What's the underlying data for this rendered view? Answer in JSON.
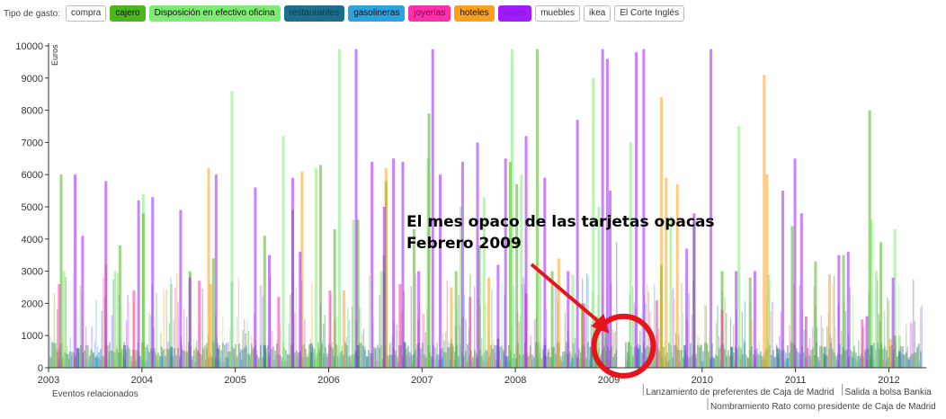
{
  "filter": {
    "label": "Tipo de gasto:",
    "buttons": [
      {
        "label": "compra",
        "color": "#ffffff",
        "text_color": "#333333"
      },
      {
        "label": "cajero",
        "color": "#4cb71b",
        "text_color": "#111111"
      },
      {
        "label": "Disposición en efectivo oficina",
        "color": "#7dec72",
        "text_color": "#111111"
      },
      {
        "label": "restaurantes",
        "color": "#1a6f8c",
        "text_color": "#0d3a4a"
      },
      {
        "label": "gasolineras",
        "color": "#2aa3e0",
        "text_color": "#111111"
      },
      {
        "label": "joyerías",
        "color": "#ff2fa8",
        "text_color": "#7a0050"
      },
      {
        "label": "hoteles",
        "color": "#ff9f1c",
        "text_color": "#111111"
      },
      {
        "label": "viajes",
        "color": "#a31cff",
        "text_color": "#7a20c0"
      },
      {
        "label": "muebles",
        "color": "#ffffff",
        "text_color": "#333333"
      },
      {
        "label": "ikea",
        "color": "#ffffff",
        "text_color": "#333333"
      },
      {
        "label": "El Corte Inglés",
        "color": "#ffffff",
        "text_color": "#333333"
      }
    ]
  },
  "chart_data": {
    "type": "bar",
    "ylabel": "Euros",
    "xlabel": "",
    "ylim": [
      0,
      10000
    ],
    "yticks": [
      0,
      1000,
      2000,
      3000,
      4000,
      5000,
      6000,
      7000,
      8000,
      9000,
      10000
    ],
    "xlim": [
      2003.0,
      2012.4
    ],
    "xticks": [
      "2003",
      "2004",
      "2005",
      "2006",
      "2007",
      "2008",
      "2009",
      "2010",
      "2011",
      "2012"
    ],
    "grid": false,
    "gap_month": "2009-02",
    "series": [
      {
        "name": "Disposición en efectivo oficina",
        "color": "#7dec72",
        "points": [
          [
            2003.15,
            3000
          ],
          [
            2003.7,
            3000
          ],
          [
            2004.0,
            5400
          ],
          [
            2004.3,
            2600
          ],
          [
            2004.95,
            8600
          ],
          [
            2005.5,
            7200
          ],
          [
            2005.85,
            6200
          ],
          [
            2006.1,
            9900
          ],
          [
            2006.25,
            4600
          ],
          [
            2006.55,
            3000
          ],
          [
            2007.05,
            6500
          ],
          [
            2007.4,
            5000
          ],
          [
            2007.65,
            5300
          ],
          [
            2007.95,
            9900
          ],
          [
            2008.05,
            6000
          ],
          [
            2008.25,
            3000
          ],
          [
            2008.6,
            2900
          ],
          [
            2008.82,
            9000
          ],
          [
            2008.88,
            5000
          ],
          [
            2009.22,
            7000
          ],
          [
            2009.65,
            4700
          ],
          [
            2010.38,
            7500
          ],
          [
            2010.7,
            2900
          ],
          [
            2011.8,
            4600
          ],
          [
            2011.85,
            3000
          ],
          [
            2012.05,
            4300
          ],
          [
            2012.1,
            1000
          ]
        ]
      },
      {
        "name": "cajero",
        "color": "#4cb71b",
        "points": [
          [
            2003.12,
            6000
          ],
          [
            2003.75,
            3800
          ],
          [
            2004.0,
            4800
          ],
          [
            2004.5,
            3000
          ],
          [
            2004.75,
            3400
          ],
          [
            2005.3,
            4100
          ],
          [
            2005.6,
            4900
          ],
          [
            2005.9,
            6300
          ],
          [
            2006.05,
            4300
          ],
          [
            2006.3,
            4600
          ],
          [
            2006.58,
            3500
          ],
          [
            2006.6,
            5800
          ],
          [
            2006.9,
            4300
          ],
          [
            2007.06,
            7900
          ],
          [
            2007.35,
            3000
          ],
          [
            2007.6,
            3800
          ],
          [
            2007.93,
            6400
          ],
          [
            2008.0,
            5700
          ],
          [
            2008.22,
            9900
          ],
          [
            2008.38,
            3000
          ],
          [
            2008.7,
            2000
          ],
          [
            2008.85,
            1600
          ],
          [
            2008.95,
            1500
          ],
          [
            2009.2,
            800
          ],
          [
            2009.55,
            3200
          ],
          [
            2009.9,
            4600
          ],
          [
            2010.2,
            3000
          ],
          [
            2010.5,
            2800
          ],
          [
            2010.95,
            4400
          ],
          [
            2011.2,
            3300
          ],
          [
            2011.5,
            3500
          ],
          [
            2011.78,
            8000
          ],
          [
            2011.9,
            3900
          ],
          [
            2012.05,
            1000
          ]
        ]
      },
      {
        "name": "restaurantes",
        "color": "#1a6f8c",
        "points": [
          [
            2003.3,
            600
          ],
          [
            2003.8,
            700
          ],
          [
            2004.3,
            650
          ],
          [
            2004.8,
            600
          ],
          [
            2005.3,
            700
          ],
          [
            2005.8,
            750
          ],
          [
            2006.3,
            700
          ],
          [
            2006.8,
            800
          ],
          [
            2007.3,
            750
          ],
          [
            2007.8,
            900
          ],
          [
            2008.3,
            700
          ],
          [
            2008.8,
            650
          ],
          [
            2009.3,
            600
          ],
          [
            2009.8,
            700
          ],
          [
            2010.3,
            650
          ],
          [
            2010.8,
            600
          ],
          [
            2011.3,
            650
          ],
          [
            2011.8,
            700
          ],
          [
            2012.1,
            500
          ]
        ]
      },
      {
        "name": "gasolineras",
        "color": "#2aa3e0",
        "points": [
          [
            2003.5,
            300
          ],
          [
            2004.2,
            350
          ],
          [
            2004.9,
            300
          ],
          [
            2005.7,
            320
          ],
          [
            2006.4,
            350
          ],
          [
            2007.2,
            330
          ],
          [
            2007.9,
            360
          ],
          [
            2008.6,
            300
          ],
          [
            2009.4,
            320
          ],
          [
            2010.1,
            340
          ],
          [
            2010.9,
            300
          ],
          [
            2011.6,
            320
          ],
          [
            2012.2,
            250
          ]
        ]
      },
      {
        "name": "joyerías",
        "color": "#ff2fa8",
        "points": [
          [
            2003.1,
            2600
          ],
          [
            2003.9,
            2400
          ],
          [
            2004.6,
            2700
          ],
          [
            2005.45,
            2200
          ],
          [
            2006.0,
            2400
          ],
          [
            2006.75,
            2600
          ],
          [
            2007.5,
            2200
          ],
          [
            2008.1,
            2300
          ],
          [
            2008.72,
            2000
          ],
          [
            2009.5,
            2100
          ],
          [
            2010.2,
            1800
          ],
          [
            2011.1,
            1600
          ],
          [
            2011.7,
            1500
          ]
        ]
      },
      {
        "name": "hoteles",
        "color": "#ff9f1c",
        "points": [
          [
            2003.6,
            3200
          ],
          [
            2004.7,
            6200
          ],
          [
            2004.72,
            2600
          ],
          [
            2005.7,
            6100
          ],
          [
            2006.15,
            2400
          ],
          [
            2006.6,
            6200
          ],
          [
            2007.3,
            2500
          ],
          [
            2007.7,
            2800
          ],
          [
            2008.45,
            3400
          ],
          [
            2009.12,
            2900
          ],
          [
            2009.55,
            8400
          ],
          [
            2009.6,
            5900
          ],
          [
            2009.72,
            5700
          ],
          [
            2010.65,
            9100
          ],
          [
            2010.68,
            6000
          ],
          [
            2011.35,
            2900
          ],
          [
            2012.0,
            900
          ]
        ]
      },
      {
        "name": "viajes",
        "color": "#a31cff",
        "points": [
          [
            2003.27,
            6000
          ],
          [
            2003.35,
            4100
          ],
          [
            2003.6,
            5800
          ],
          [
            2003.95,
            5200
          ],
          [
            2004.1,
            5300
          ],
          [
            2004.4,
            4900
          ],
          [
            2004.5,
            2800
          ],
          [
            2004.78,
            6000
          ],
          [
            2005.2,
            5600
          ],
          [
            2005.35,
            3500
          ],
          [
            2005.6,
            5900
          ],
          [
            2005.68,
            3600
          ],
          [
            2006.28,
            9900
          ],
          [
            2006.45,
            6400
          ],
          [
            2006.58,
            5000
          ],
          [
            2006.68,
            6500
          ],
          [
            2006.78,
            6400
          ],
          [
            2006.95,
            3000
          ],
          [
            2007.1,
            9900
          ],
          [
            2007.18,
            6000
          ],
          [
            2007.42,
            6400
          ],
          [
            2007.58,
            7000
          ],
          [
            2007.8,
            3200
          ],
          [
            2007.88,
            6500
          ],
          [
            2008.1,
            7200
          ],
          [
            2008.3,
            5900
          ],
          [
            2008.55,
            3000
          ],
          [
            2008.65,
            7700
          ],
          [
            2008.92,
            9900
          ],
          [
            2008.97,
            9600
          ],
          [
            2009.0,
            5500
          ],
          [
            2009.08,
            3900
          ],
          [
            2009.28,
            9800
          ],
          [
            2009.36,
            9900
          ],
          [
            2009.82,
            3700
          ],
          [
            2009.9,
            4800
          ],
          [
            2010.08,
            9900
          ],
          [
            2010.35,
            3000
          ],
          [
            2010.55,
            3000
          ],
          [
            2010.85,
            5500
          ],
          [
            2010.98,
            6500
          ],
          [
            2011.05,
            4800
          ],
          [
            2011.45,
            3500
          ],
          [
            2011.55,
            3600
          ],
          [
            2011.75,
            1600
          ],
          [
            2012.03,
            2800
          ]
        ]
      }
    ],
    "highlight_marker": {
      "x": 2009.12,
      "y": 450
    },
    "annotation": {
      "lines": [
        "El mes opaco de las tarjetas opacas",
        "Febrero 2009"
      ]
    },
    "events": {
      "label": "Eventos relacionados",
      "items": [
        {
          "x": 2009.37,
          "label": "Lanzamiento de preferentes de Caja de Madrid",
          "row": 0
        },
        {
          "x": 2011.5,
          "label": "Salida a bolsa Bankia",
          "row": 0
        },
        {
          "x": 2010.06,
          "label": "Nombramiento Rato como presidente de Caja de Madrid",
          "row": 1
        }
      ]
    }
  }
}
